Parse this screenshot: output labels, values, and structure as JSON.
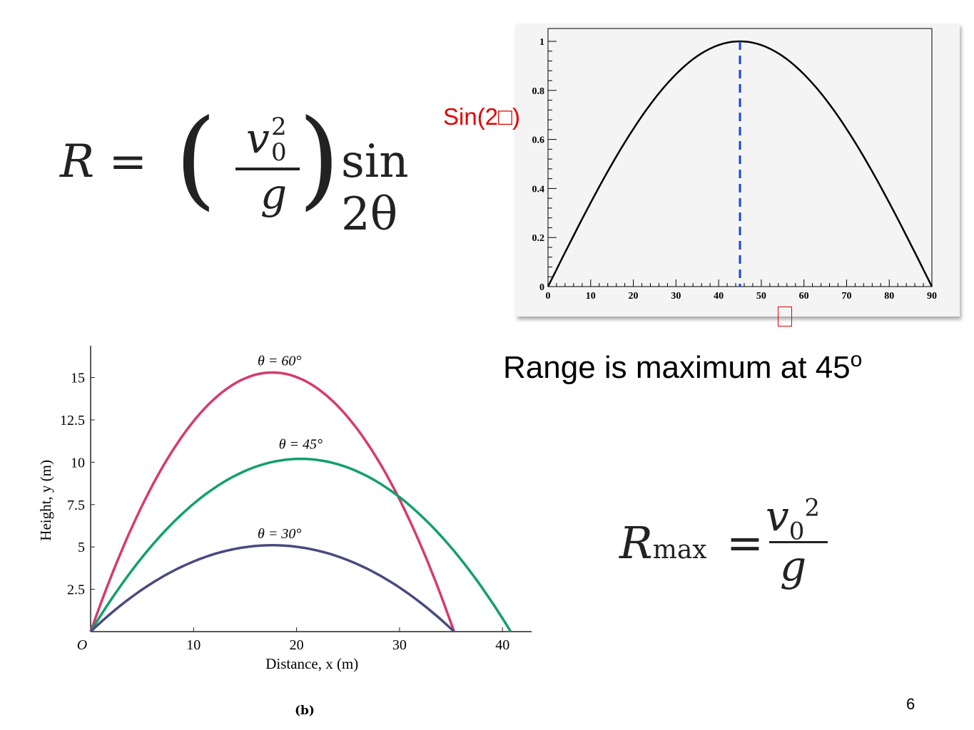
{
  "formulas": {
    "range": {
      "lhs": "R",
      "equals": "=",
      "open_paren": "(",
      "close_paren": ")",
      "num_var": "v",
      "num_sup": "2",
      "num_sub": "0",
      "denominator": "g",
      "func": "sin 2θ"
    },
    "rmax": {
      "lhs": "R",
      "lhs_sub": "max",
      "equals": "=",
      "num_var": "v",
      "num_sub": "0",
      "num_sup": "2",
      "denominator": "g"
    }
  },
  "sin_plot": {
    "ylabel": "Sin(2□)",
    "xlabel_symbol": "□"
  },
  "range_statement": {
    "text": "Range is maximum at 45",
    "superscript": "o"
  },
  "panel_tag": "(b)",
  "page_number": "6",
  "colors": {
    "red_label": "#e00000",
    "dashed_line": "#1a44e0",
    "curve_60": "#d63a6e",
    "curve_45": "#12a06a",
    "curve_30": "#4a4a80"
  },
  "chart_data": [
    {
      "type": "line",
      "title": "",
      "ylabel": "Sin(2□)",
      "xlabel": "□",
      "xlim": [
        0,
        90
      ],
      "ylim": [
        0,
        1
      ],
      "xticks": [
        "0",
        "10",
        "20",
        "30",
        "40",
        "50",
        "60",
        "70",
        "80",
        "90"
      ],
      "yticks": [
        "0",
        "0.2",
        "0.4",
        "0.6",
        "0.8",
        "1"
      ],
      "series": [
        {
          "function": "sin(2x)",
          "x": [
            0,
            5,
            10,
            15,
            20,
            25,
            30,
            35,
            40,
            45,
            50,
            55,
            60,
            65,
            70,
            75,
            80,
            85,
            90
          ],
          "y": [
            0,
            0.174,
            0.342,
            0.5,
            0.643,
            0.766,
            0.866,
            0.94,
            0.985,
            1,
            0.985,
            0.94,
            0.866,
            0.766,
            0.643,
            0.5,
            0.342,
            0.174,
            0
          ]
        }
      ],
      "reference_line": {
        "x": 45,
        "style": "dashed"
      },
      "grid": false
    },
    {
      "type": "line",
      "xlabel": "Distance, x (m)",
      "ylabel": "Height, y (m)",
      "origin_label": "O",
      "xlim": [
        0,
        43
      ],
      "ylim": [
        0,
        17.5
      ],
      "xticks": [
        "10",
        "20",
        "30",
        "40"
      ],
      "yticks": [
        "2.5",
        "5",
        "7.5",
        "10",
        "12.5",
        "15"
      ],
      "series": [
        {
          "name": "θ = 60°",
          "range": 35.3,
          "max_height": 15.3,
          "peak_x": 17.65
        },
        {
          "name": "θ = 45°",
          "range": 40.8,
          "max_height": 10.2,
          "peak_x": 20.4
        },
        {
          "name": "θ = 30°",
          "range": 35.3,
          "max_height": 5.1,
          "peak_x": 17.65
        }
      ],
      "grid": false
    }
  ]
}
